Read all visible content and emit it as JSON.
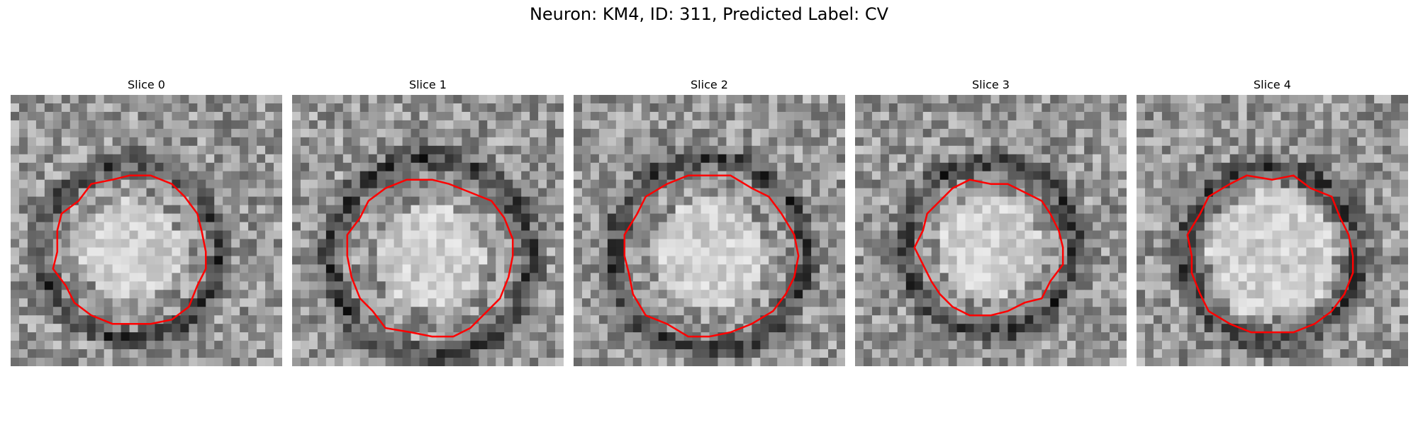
{
  "figure": {
    "title": "Neuron: KM4, ID: 311, Predicted Label: CV"
  },
  "panels": [
    {
      "title": "Slice 0",
      "contour_color": "#ff0000",
      "seed": 11
    },
    {
      "title": "Slice 1",
      "contour_color": "#ff0000",
      "seed": 23
    },
    {
      "title": "Slice 2",
      "contour_color": "#ff0000",
      "seed": 37
    },
    {
      "title": "Slice 3",
      "contour_color": "#ff0000",
      "seed": 53
    },
    {
      "title": "Slice 4",
      "contour_color": "#ff0000",
      "seed": 71
    }
  ]
}
